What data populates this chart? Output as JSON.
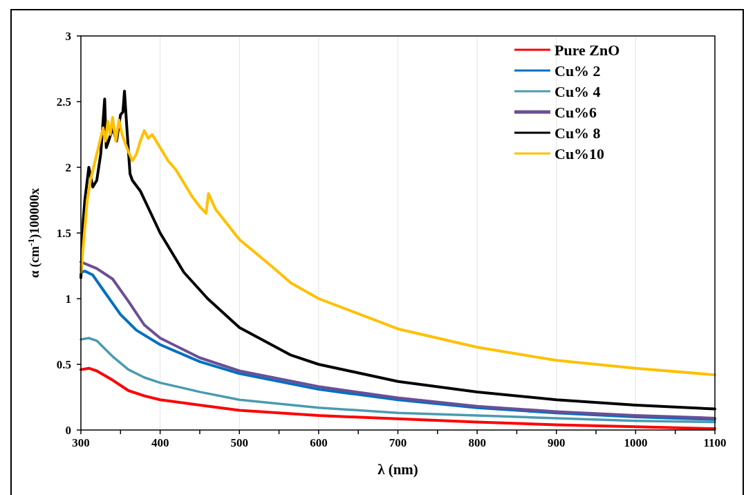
{
  "chart_data": {
    "type": "line",
    "xlabel": "λ (nm)",
    "ylabel": "α (cm$^{-1}$)100000x",
    "xlim": [
      300,
      1100
    ],
    "ylim": [
      0,
      3
    ],
    "xticks": [
      300,
      {
        "value": 350,
        "label": null
      },
      400,
      {
        "value": 450,
        "label": null
      },
      500,
      {
        "value": 550,
        "label": null
      },
      600,
      {
        "value": 650,
        "label": null
      },
      700,
      {
        "value": 750,
        "label": null
      },
      800,
      {
        "value": 850,
        "label": null
      },
      900,
      {
        "value": 950,
        "label": null
      },
      1000,
      {
        "value": 1050,
        "label": null
      },
      1100
    ],
    "yticks": [
      0,
      0.5,
      1,
      1.5,
      2,
      2.5,
      3
    ],
    "grid": "x",
    "legend": "top right",
    "line_style": "solid",
    "series": [
      {
        "name": "Pure ZnO",
        "color": "#ff0000",
        "x": [
          300,
          310,
          320,
          340,
          360,
          380,
          400,
          450,
          500,
          550,
          600,
          700,
          800,
          900,
          1000,
          1100
        ],
        "values": [
          0.46,
          0.47,
          0.45,
          0.38,
          0.3,
          0.26,
          0.23,
          0.19,
          0.15,
          0.13,
          0.11,
          0.085,
          0.06,
          0.04,
          0.025,
          0.01
        ]
      },
      {
        "name": "Cu% 2",
        "color": "#0070c0",
        "x": [
          300,
          305,
          315,
          330,
          350,
          370,
          400,
          450,
          500,
          600,
          700,
          800,
          900,
          1000,
          1100
        ],
        "values": [
          1.2,
          1.21,
          1.18,
          1.05,
          0.88,
          0.76,
          0.65,
          0.52,
          0.43,
          0.31,
          0.23,
          0.17,
          0.13,
          0.1,
          0.08
        ]
      },
      {
        "name": "Cu% 4",
        "color": "#4a9bb0",
        "x": [
          300,
          310,
          320,
          340,
          360,
          380,
          400,
          450,
          500,
          600,
          700,
          800,
          900,
          1000,
          1100
        ],
        "values": [
          0.69,
          0.7,
          0.68,
          0.56,
          0.46,
          0.4,
          0.36,
          0.29,
          0.23,
          0.17,
          0.13,
          0.11,
          0.09,
          0.07,
          0.06
        ]
      },
      {
        "name": "Cu%6",
        "color": "#6a4f95",
        "x": [
          300,
          320,
          340,
          360,
          380,
          400,
          450,
          500,
          600,
          700,
          800,
          900,
          1000,
          1100
        ],
        "values": [
          1.28,
          1.23,
          1.15,
          0.98,
          0.8,
          0.7,
          0.55,
          0.45,
          0.33,
          0.245,
          0.18,
          0.14,
          0.11,
          0.09
        ]
      },
      {
        "name": "Cu% 8",
        "color": "#000000",
        "x": [
          300,
          303,
          305,
          310,
          315,
          320,
          325,
          330,
          332,
          335,
          340,
          345,
          350,
          353,
          355,
          358,
          362,
          365,
          375,
          400,
          430,
          460,
          500,
          565,
          600,
          700,
          800,
          900,
          1000,
          1100
        ],
        "values": [
          1.16,
          1.6,
          1.75,
          2.0,
          1.85,
          1.9,
          2.1,
          2.52,
          2.15,
          2.2,
          2.3,
          2.2,
          2.4,
          2.42,
          2.58,
          2.3,
          1.95,
          1.9,
          1.82,
          1.5,
          1.2,
          1.0,
          0.78,
          0.57,
          0.5,
          0.37,
          0.29,
          0.23,
          0.19,
          0.16
        ]
      },
      {
        "name": "Cu%10",
        "color": "#ffc000",
        "x": [
          300,
          303,
          308,
          312,
          318,
          322,
          328,
          331,
          334,
          337,
          340,
          344,
          348,
          352,
          356,
          360,
          365,
          370,
          375,
          380,
          385,
          390,
          395,
          400,
          410,
          420,
          430,
          440,
          450,
          458,
          461,
          470,
          500,
          540,
          565,
          600,
          700,
          800,
          900,
          1000,
          1100
        ],
        "values": [
          1.2,
          1.4,
          1.75,
          1.9,
          2.05,
          2.15,
          2.3,
          2.2,
          2.35,
          2.25,
          2.38,
          2.2,
          2.36,
          2.25,
          2.18,
          2.12,
          2.05,
          2.1,
          2.2,
          2.28,
          2.22,
          2.25,
          2.2,
          2.15,
          2.05,
          1.98,
          1.88,
          1.78,
          1.7,
          1.65,
          1.8,
          1.68,
          1.45,
          1.25,
          1.12,
          1.0,
          0.77,
          0.63,
          0.53,
          0.47,
          0.42
        ]
      }
    ]
  }
}
